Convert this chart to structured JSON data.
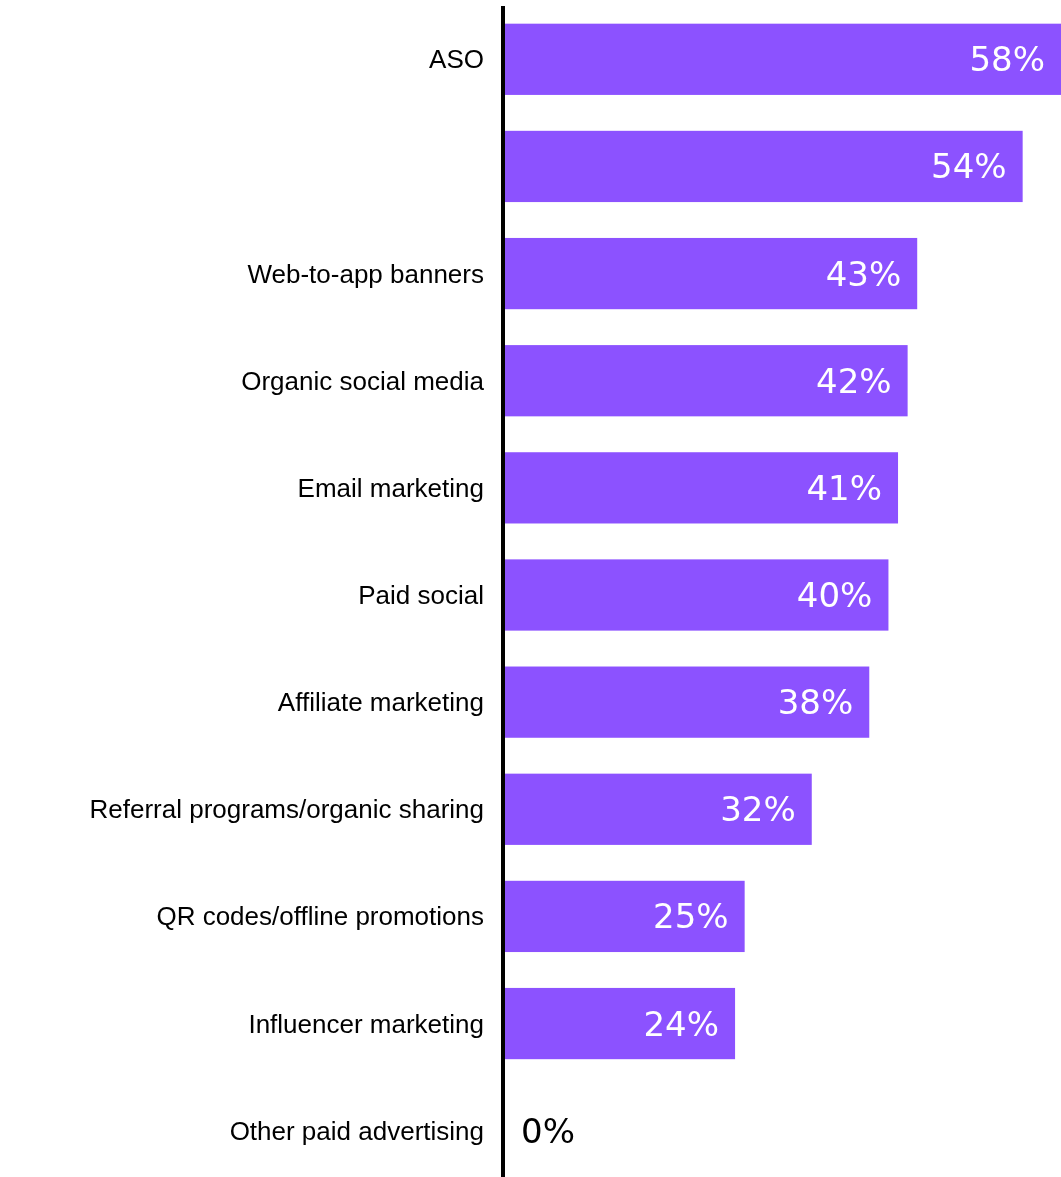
{
  "chart_data": {
    "type": "bar",
    "orientation": "horizontal",
    "categories": [
      "ASO",
      null,
      "Web-to-app banners",
      "Organic social media",
      "Email marketing",
      "Paid social",
      "Affiliate marketing",
      "Referral programs/organic sharing",
      "QR codes/offline promotions",
      "Influencer marketing",
      "Other paid advertising"
    ],
    "values": [
      58,
      54,
      43,
      42,
      41,
      40,
      38,
      32,
      25,
      24,
      0
    ],
    "value_labels": [
      "58%",
      "54%",
      "43%",
      "42%",
      "41%",
      "40%",
      "38%",
      "32%",
      "25%",
      "24%",
      "0%"
    ],
    "color": "#8c52ff",
    "xlim": [
      0,
      58
    ],
    "tick_labels": "y"
  }
}
